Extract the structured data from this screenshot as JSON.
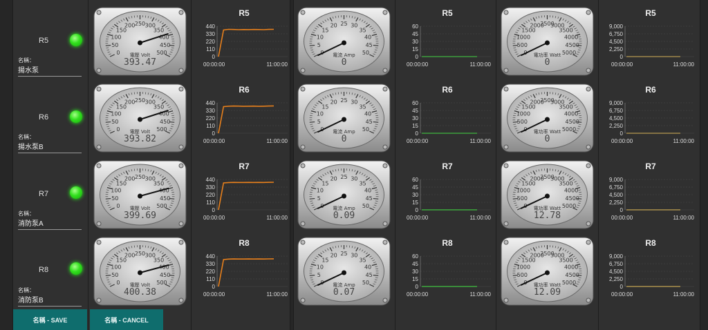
{
  "rows": [
    {
      "id": "R5",
      "name_caption": "名稱：",
      "name_value": "揚水泵"
    },
    {
      "id": "R6",
      "name_caption": "名稱：",
      "name_value": "揚水泵B"
    },
    {
      "id": "R7",
      "name_caption": "名稱：",
      "name_value": "消防泵A"
    },
    {
      "id": "R8",
      "name_caption": "名稱：",
      "name_value": "消防泵B"
    }
  ],
  "buttons": {
    "save": "名稱 - SAVE",
    "cancel": "名稱 - CANCEL"
  },
  "gauges": {
    "volt": {
      "unit": "電壓 Volt",
      "min": 0,
      "max": 500,
      "ticks": [
        "0",
        "50",
        "100",
        "150",
        "200",
        "250",
        "300",
        "350",
        "400",
        "450",
        "500"
      ],
      "values": [
        {
          "value": 393.47,
          "text": "393.47"
        },
        {
          "value": 393.82,
          "text": "393.82"
        },
        {
          "value": 399.69,
          "text": "399.69"
        },
        {
          "value": 400.38,
          "text": "400.38"
        }
      ]
    },
    "amp": {
      "unit": "電流 Amp",
      "min": 0,
      "max": 50,
      "ticks": [
        "0",
        "5",
        "10",
        "15",
        "20",
        "25",
        "30",
        "35",
        "40",
        "45",
        "50"
      ],
      "values": [
        {
          "value": 0,
          "text": "0"
        },
        {
          "value": 0,
          "text": "0"
        },
        {
          "value": 0.09,
          "text": "0.09"
        },
        {
          "value": 0.07,
          "text": "0.07"
        }
      ]
    },
    "watt": {
      "unit": "電功率 Watt",
      "min": 0,
      "max": 5000,
      "ticks": [
        "0",
        "500",
        "1000",
        "1500",
        "2000",
        "2500",
        "3000",
        "3500",
        "4000",
        "4500",
        "5000"
      ],
      "values": [
        {
          "value": 0,
          "text": "0"
        },
        {
          "value": 0,
          "text": "0"
        },
        {
          "value": 12.78,
          "text": "12.78"
        },
        {
          "value": 12.09,
          "text": "12.09"
        }
      ]
    }
  },
  "chart_data": [
    {
      "type": "line",
      "group": "voltage",
      "color": "#e8801c",
      "ylim": [
        0,
        440
      ],
      "yticks": [
        "440",
        "330",
        "220",
        "110",
        "0"
      ],
      "xticks": [
        "00:00:00",
        "11:00:00"
      ],
      "charts": [
        {
          "title": "R5",
          "x": [
            "00:00:00",
            "01:00:00",
            "02:00:00",
            "03:00:00",
            "04:00:00",
            "05:00:00",
            "06:00:00",
            "07:00:00",
            "08:00:00",
            "09:00:00",
            "10:00:00",
            "11:00:00"
          ],
          "values": [
            0,
            385,
            395,
            393,
            390,
            392,
            391,
            393,
            392,
            390,
            394,
            395
          ]
        },
        {
          "title": "R6",
          "x": [
            "00:00:00",
            "01:00:00",
            "02:00:00",
            "03:00:00",
            "04:00:00",
            "05:00:00",
            "06:00:00",
            "07:00:00",
            "08:00:00",
            "09:00:00",
            "10:00:00",
            "11:00:00"
          ],
          "values": [
            0,
            385,
            392,
            394,
            393,
            391,
            392,
            393,
            391,
            392,
            394,
            396
          ]
        },
        {
          "title": "R7",
          "x": [
            "00:00:00",
            "01:00:00",
            "02:00:00",
            "03:00:00",
            "04:00:00",
            "05:00:00",
            "06:00:00",
            "07:00:00",
            "08:00:00",
            "09:00:00",
            "10:00:00",
            "11:00:00"
          ],
          "values": [
            0,
            390,
            396,
            398,
            397,
            397,
            398,
            397,
            398,
            397,
            399,
            400
          ]
        },
        {
          "title": "R8",
          "x": [
            "00:00:00",
            "01:00:00",
            "02:00:00",
            "03:00:00",
            "04:00:00",
            "05:00:00",
            "06:00:00",
            "07:00:00",
            "08:00:00",
            "09:00:00",
            "10:00:00",
            "11:00:00"
          ],
          "values": [
            0,
            390,
            397,
            399,
            398,
            398,
            399,
            398,
            399,
            398,
            400,
            401
          ]
        }
      ]
    },
    {
      "type": "line",
      "group": "current",
      "color": "#3ca03c",
      "ylim": [
        0,
        60
      ],
      "yticks": [
        "60",
        "45",
        "30",
        "15",
        "0"
      ],
      "xticks": [
        "00:00:00",
        "11:00:00"
      ],
      "charts": [
        {
          "title": "R5",
          "x": [
            "00:00:00",
            "11:00:00"
          ],
          "values": [
            0,
            0
          ]
        },
        {
          "title": "R6",
          "x": [
            "00:00:00",
            "11:00:00"
          ],
          "values": [
            0,
            0
          ]
        },
        {
          "title": "R7",
          "x": [
            "00:00:00",
            "11:00:00"
          ],
          "values": [
            0.09,
            0.09
          ]
        },
        {
          "title": "R8",
          "x": [
            "00:00:00",
            "11:00:00"
          ],
          "values": [
            0.07,
            0.07
          ]
        }
      ]
    },
    {
      "type": "line",
      "group": "power",
      "color": "#a0884a",
      "ylim": [
        0,
        9000
      ],
      "yticks": [
        "9,000",
        "6,750",
        "4,500",
        "2,250",
        "0"
      ],
      "xticks": [
        "00:00:00",
        "11:00:00"
      ],
      "charts": [
        {
          "title": "R5",
          "x": [
            "00:00:00",
            "11:00:00"
          ],
          "values": [
            0,
            0
          ]
        },
        {
          "title": "R6",
          "x": [
            "00:00:00",
            "11:00:00"
          ],
          "values": [
            0,
            0
          ]
        },
        {
          "title": "R7",
          "x": [
            "00:00:00",
            "11:00:00"
          ],
          "values": [
            12.78,
            12.78
          ]
        },
        {
          "title": "R8",
          "x": [
            "00:00:00",
            "11:00:00"
          ],
          "values": [
            12.09,
            12.09
          ]
        }
      ]
    }
  ],
  "colors": {
    "led_on": "#32e01e",
    "button": "#0f6d6d"
  }
}
